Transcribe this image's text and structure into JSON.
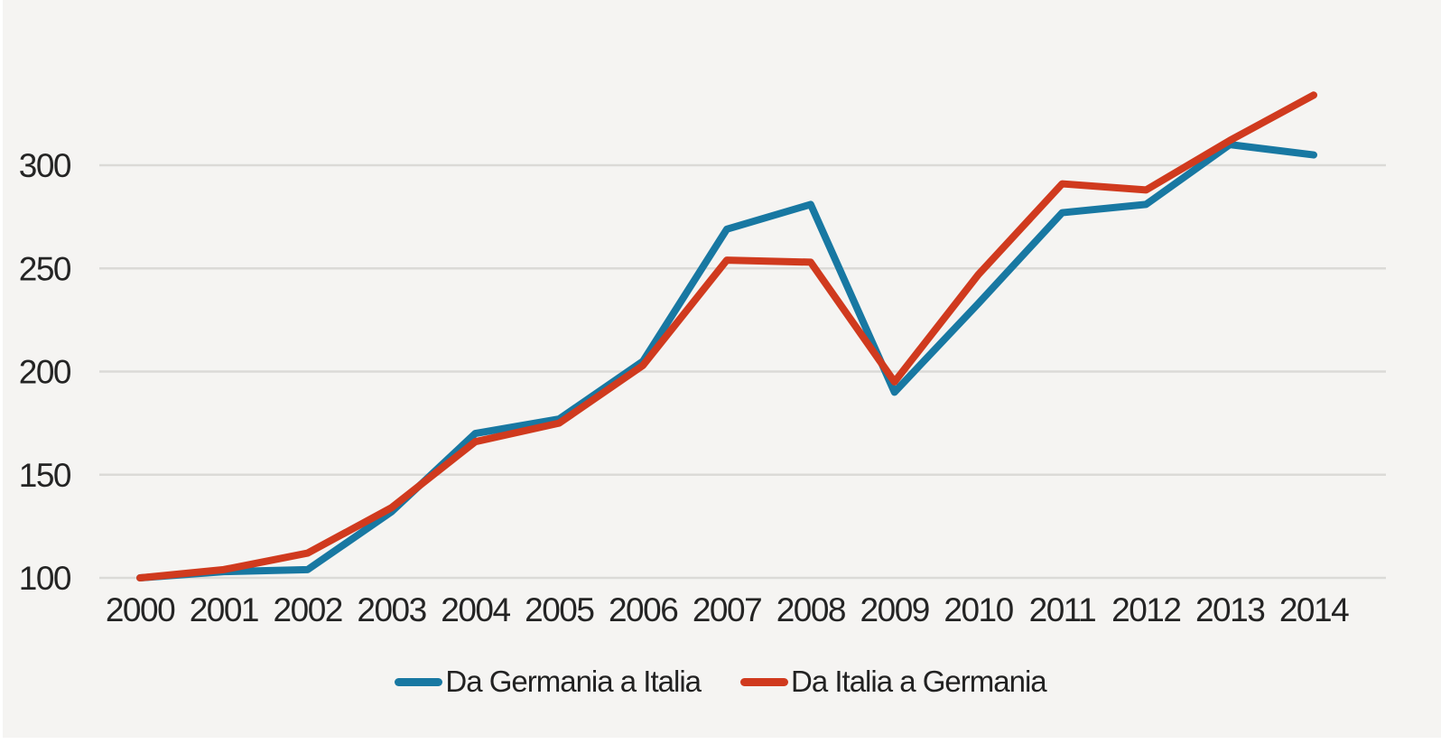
{
  "colors": {
    "background": "#f5f4f2",
    "frame": "#ffffff",
    "gridline": "#dbdad7",
    "tick_text": "#242424"
  },
  "chart_data": {
    "type": "line",
    "title": "",
    "xlabel": "",
    "ylabel": "",
    "grid": true,
    "legend_position": "bottom",
    "x": [
      "2000",
      "2001",
      "2002",
      "2003",
      "2004",
      "2005",
      "2006",
      "2007",
      "2008",
      "2009",
      "2010",
      "2011",
      "2012",
      "2013",
      "2014"
    ],
    "yticks": [
      100,
      150,
      200,
      250,
      300
    ],
    "ylim": [
      100,
      300
    ],
    "series": [
      {
        "name": "Da Germania a Italia",
        "color": "#1878a2",
        "values": [
          100,
          103,
          104,
          132,
          170,
          177,
          205,
          269,
          281,
          190,
          233,
          277,
          281,
          310,
          305
        ]
      },
      {
        "name": "Da Italia a Germania",
        "color": "#d03a1e",
        "values": [
          100,
          104,
          112,
          134,
          166,
          175,
          203,
          254,
          253,
          195,
          247,
          291,
          288,
          312,
          334
        ]
      }
    ]
  },
  "legend": {
    "item1_label": "Da Germania a Italia",
    "item2_label": "Da Italia a Germania"
  }
}
